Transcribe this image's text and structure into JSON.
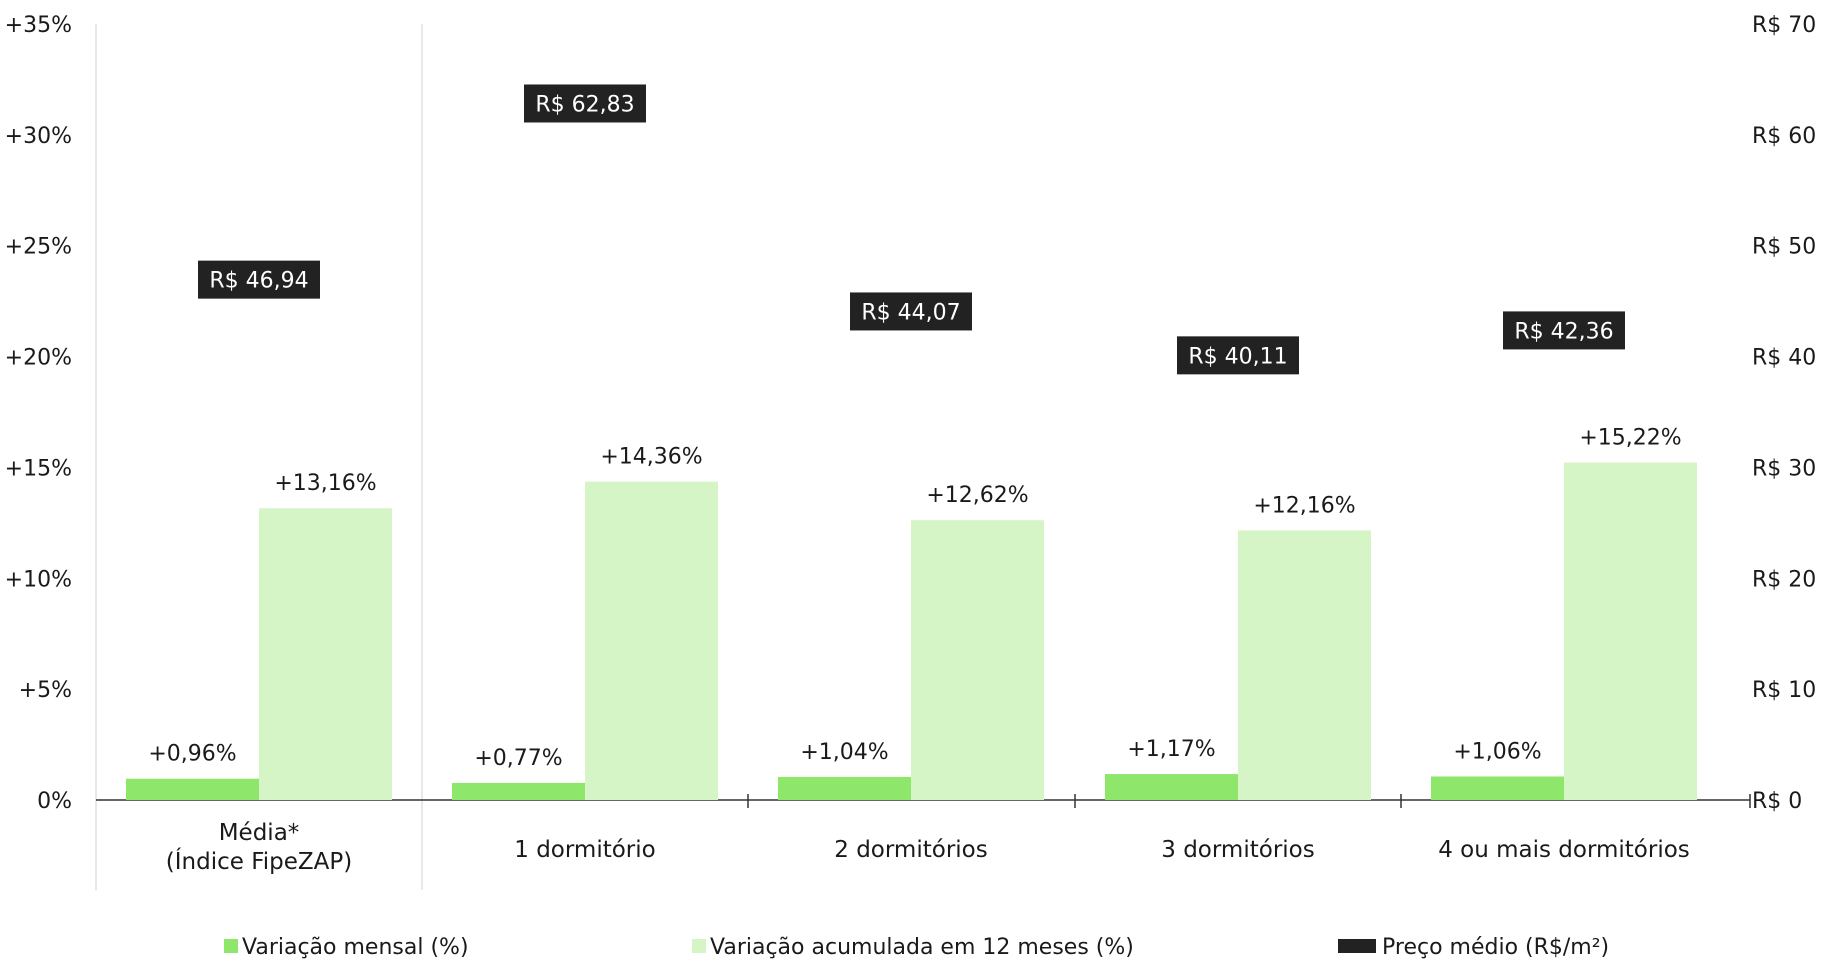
{
  "chart_data": {
    "type": "bar",
    "categories": [
      "Média*\n(Índice FipeZAP)",
      "1 dormitório",
      "2 dormitórios",
      "3 dormitórios",
      "4 ou mais dormitórios"
    ],
    "series": [
      {
        "name": "Variação mensal (%)",
        "values": [
          0.96,
          0.77,
          1.04,
          1.17,
          1.06
        ],
        "labels": [
          "+0,96%",
          "+0,77%",
          "+1,04%",
          "+1,17%",
          "+1,06%"
        ],
        "color": "#8ee66a"
      },
      {
        "name": "Variação acumulada em 12 meses (%)",
        "values": [
          13.16,
          14.36,
          12.62,
          12.16,
          15.22
        ],
        "labels": [
          "+13,16%",
          "+14,36%",
          "+12,62%",
          "+12,16%",
          "+15,22%"
        ],
        "color": "#d5f5c6"
      },
      {
        "name": "Preço médio (R$/m²)",
        "values": [
          46.94,
          62.83,
          44.07,
          40.11,
          42.36
        ],
        "labels": [
          "R$ 46,94",
          "R$ 62,83",
          "R$ 44,07",
          "R$ 40,11",
          "R$ 42,36"
        ],
        "color": "#222222"
      }
    ],
    "y_left": {
      "ylim": [
        0,
        35
      ],
      "ticks": [
        0,
        5,
        10,
        15,
        20,
        25,
        30,
        35
      ],
      "tick_labels": [
        "0%",
        "+5%",
        "+10%",
        "+15%",
        "+20%",
        "+25%",
        "+30%",
        "+35%"
      ]
    },
    "y_right": {
      "ylim": [
        0,
        70
      ],
      "ticks": [
        0,
        10,
        20,
        30,
        40,
        50,
        60,
        70
      ],
      "tick_labels": [
        "R$ 0",
        "R$ 10",
        "R$ 20",
        "R$ 30",
        "R$ 40",
        "R$ 50",
        "R$ 60",
        "R$ 70"
      ]
    },
    "grid": false,
    "legend_position": "bottom"
  }
}
